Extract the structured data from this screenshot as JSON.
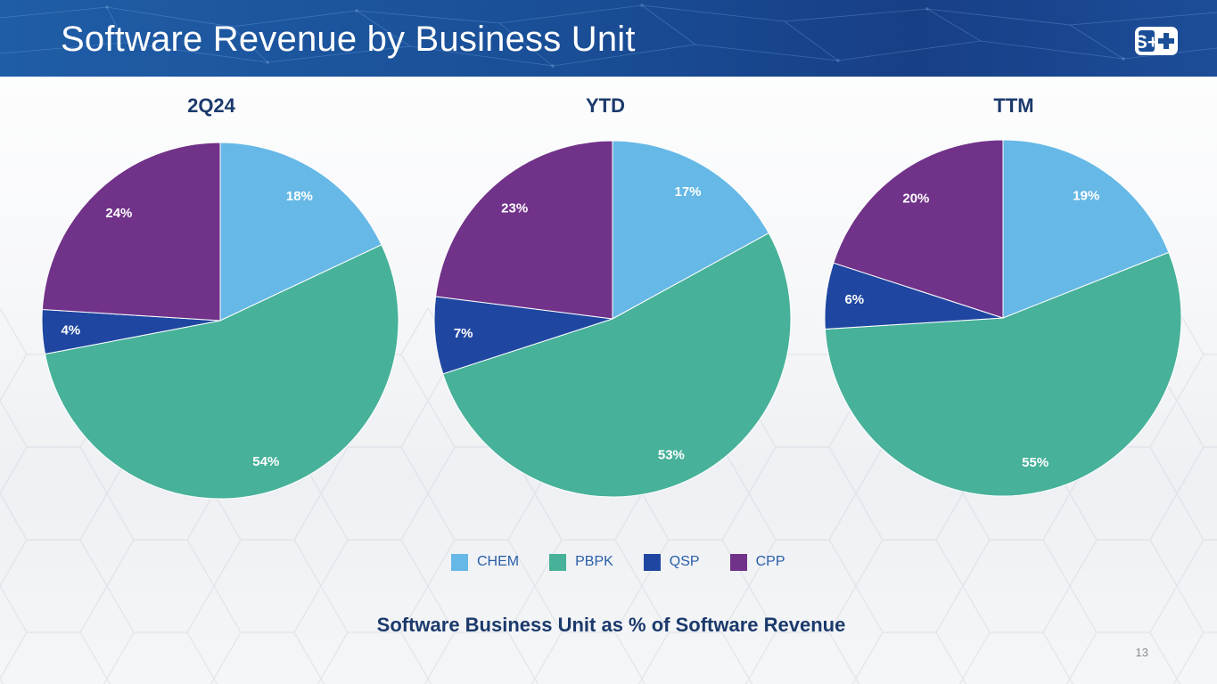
{
  "slide": {
    "title": "Software Revenue by Business Unit",
    "logo_text": "S+",
    "caption": "Software Business Unit as % of Software Revenue",
    "page_number": "13"
  },
  "legend": [
    {
      "label": "CHEM",
      "color": "#66b8e6"
    },
    {
      "label": "PBPK",
      "color": "#47b199"
    },
    {
      "label": "QSP",
      "color": "#1f47a1"
    },
    {
      "label": "CPP",
      "color": "#713289"
    }
  ],
  "chart_data": [
    {
      "type": "pie",
      "title": "2Q24",
      "categories": [
        "CHEM",
        "PBPK",
        "QSP",
        "CPP"
      ],
      "values": [
        18,
        54,
        4,
        24
      ],
      "labels": [
        "18%",
        "54%",
        "4%",
        "24%"
      ]
    },
    {
      "type": "pie",
      "title": "YTD",
      "categories": [
        "CHEM",
        "PBPK",
        "QSP",
        "CPP"
      ],
      "values": [
        17,
        53,
        7,
        23
      ],
      "labels": [
        "17%",
        "53%",
        "7%",
        "23%"
      ]
    },
    {
      "type": "pie",
      "title": "TTM",
      "categories": [
        "CHEM",
        "PBPK",
        "QSP",
        "CPP"
      ],
      "values": [
        19,
        55,
        6,
        20
      ],
      "labels": [
        "19%",
        "55%",
        "6%",
        "20%"
      ]
    }
  ]
}
